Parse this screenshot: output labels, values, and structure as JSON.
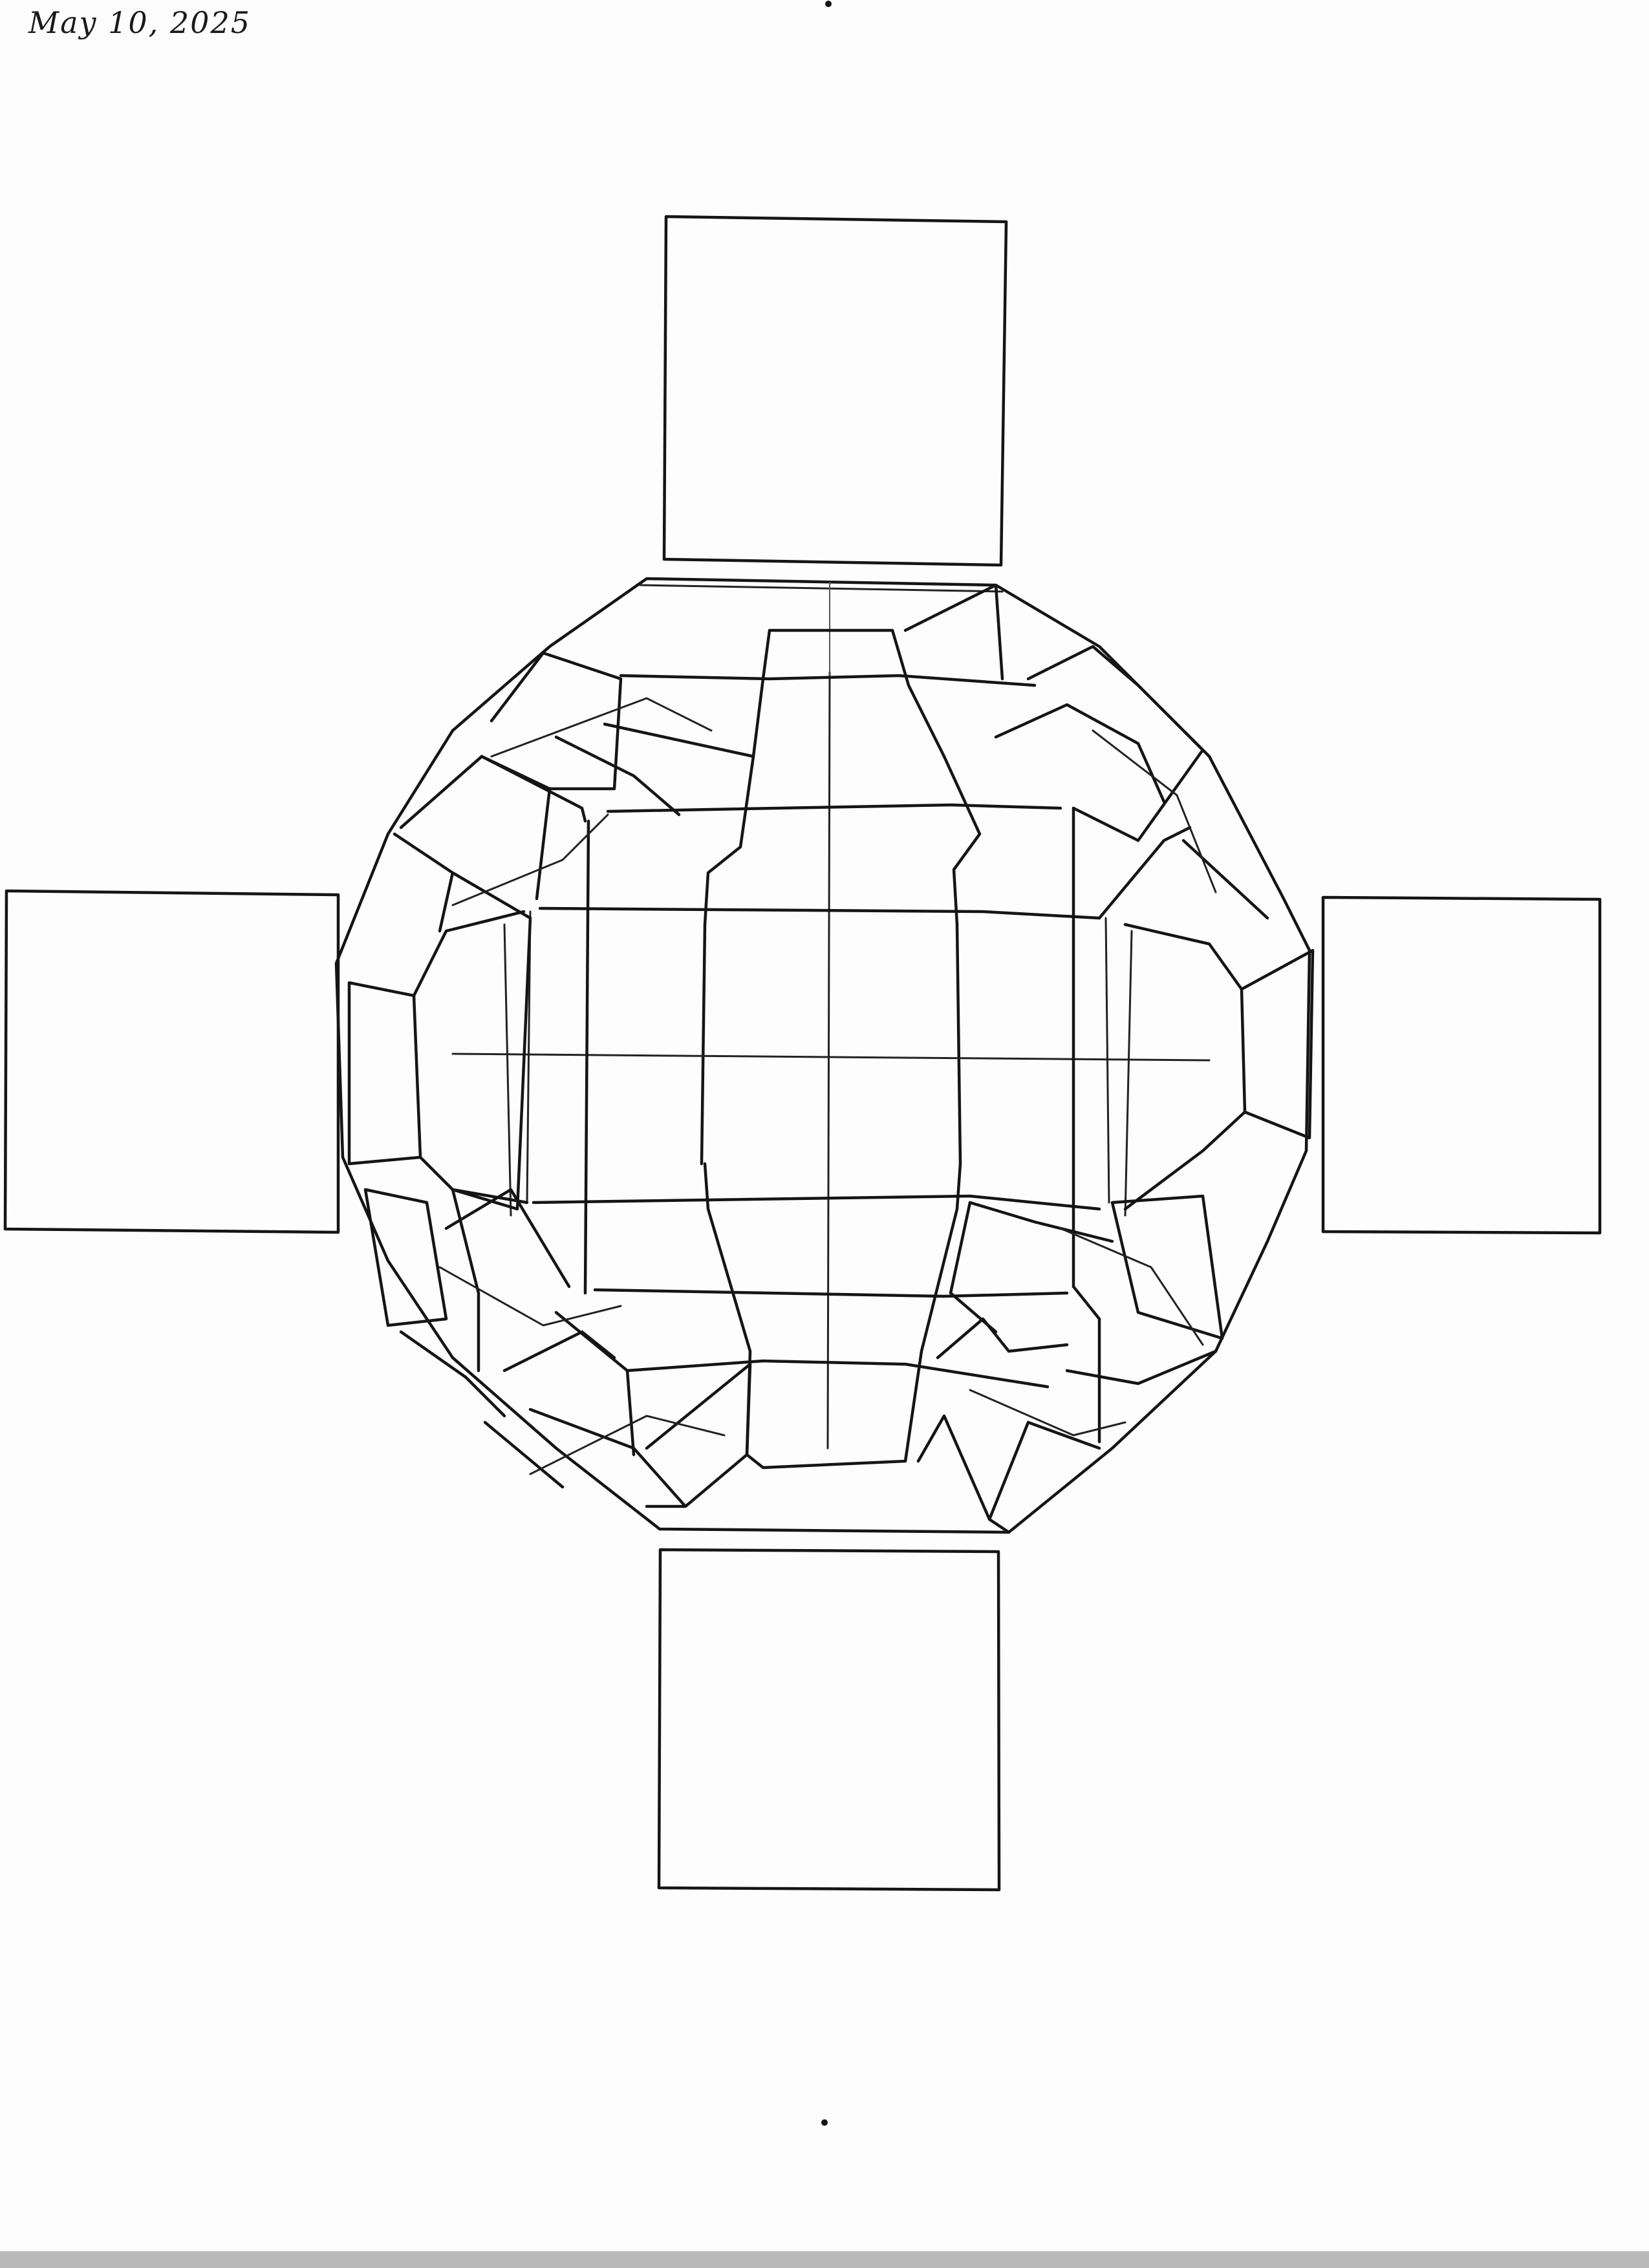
{
  "note": {
    "date_text": "May 10, 2025"
  },
  "colors": {
    "ink": "#151515",
    "paper": "#fdfdfd"
  }
}
